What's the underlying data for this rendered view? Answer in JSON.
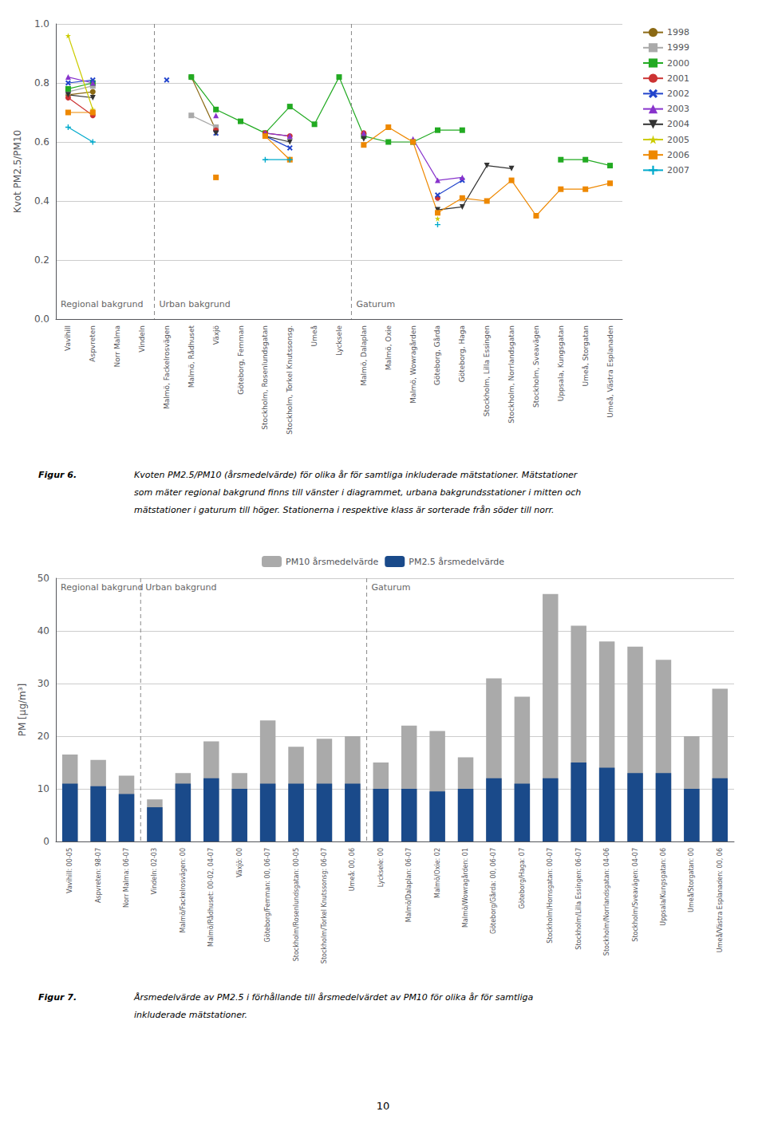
{
  "chart_data": [
    {
      "type": "line",
      "categories": [
        "Vavihill",
        "Aspvreten",
        "Norr Malma",
        "Vindeln",
        "Malmö, Fackelrosvägen",
        "Malmö, Rådhuset",
        "Växjö",
        "Göteborg, Femman",
        "Stockholm, Rosenlundsgatan",
        "Stockholm, Torkel Knutssonsg.",
        "Umeå",
        "Lycksele",
        "Malmö, Dalaplan",
        "Malmö, Oxie",
        "Malmö, Wowragården",
        "Göteborg, Gårda",
        "Göteborg, Haga",
        "Stockholm, Lilla Essingen",
        "Stockholm, Norrlandsgatan",
        "Stockholm, Sveavägen",
        "Uppsala, Kungsgatan",
        "Umeå, Storgatan",
        "Umeå, Västra Esplanaden"
      ],
      "series": [
        {
          "name": "1998",
          "color": "#8B6914",
          "marker": "circle",
          "values": [
            0.76,
            0.77,
            null,
            null,
            null,
            0.82,
            0.64,
            null,
            null,
            null,
            null,
            null,
            null,
            null,
            null,
            null,
            null,
            null,
            null,
            null,
            null,
            null,
            null
          ]
        },
        {
          "name": "1999",
          "color": "#aaaaaa",
          "marker": "square",
          "values": [
            0.77,
            0.79,
            null,
            null,
            null,
            0.69,
            0.65,
            null,
            null,
            null,
            null,
            null,
            null,
            null,
            null,
            null,
            null,
            null,
            null,
            null,
            null,
            null,
            null
          ]
        },
        {
          "name": "2000",
          "color": "#22aa22",
          "marker": "square",
          "values": [
            0.78,
            0.8,
            null,
            null,
            null,
            0.82,
            0.71,
            0.67,
            0.63,
            0.72,
            0.66,
            0.82,
            0.62,
            0.6,
            0.6,
            0.64,
            0.64,
            null,
            null,
            null,
            0.54,
            0.54,
            0.52
          ]
        },
        {
          "name": "2001",
          "color": "#cc3333",
          "marker": "circle",
          "values": [
            0.75,
            0.69,
            null,
            null,
            null,
            null,
            0.64,
            null,
            0.63,
            0.62,
            null,
            null,
            0.63,
            null,
            null,
            0.41,
            null,
            null,
            null,
            null,
            null,
            null,
            null
          ]
        },
        {
          "name": "2002",
          "color": "#2244cc",
          "marker": "x",
          "values": [
            0.8,
            0.81,
            null,
            null,
            0.81,
            null,
            0.63,
            null,
            0.62,
            0.58,
            null,
            null,
            null,
            null,
            null,
            0.42,
            0.47,
            null,
            null,
            null,
            null,
            null,
            null
          ]
        },
        {
          "name": "2003",
          "color": "#8833cc",
          "marker": "triangle-up",
          "values": [
            0.82,
            0.8,
            null,
            null,
            null,
            null,
            0.69,
            null,
            0.63,
            0.62,
            null,
            null,
            0.63,
            null,
            0.61,
            0.47,
            0.48,
            null,
            null,
            null,
            null,
            null,
            null
          ]
        },
        {
          "name": "2004",
          "color": "#333333",
          "marker": "triangle-down",
          "values": [
            0.76,
            0.75,
            null,
            null,
            null,
            null,
            0.63,
            null,
            0.62,
            0.6,
            null,
            null,
            0.61,
            null,
            null,
            0.37,
            0.38,
            0.52,
            0.51,
            null,
            null,
            null,
            null
          ]
        },
        {
          "name": "2005",
          "color": "#cccc00",
          "marker": "star",
          "values": [
            0.96,
            0.71,
            null,
            null,
            null,
            null,
            null,
            null,
            null,
            null,
            null,
            null,
            null,
            null,
            null,
            0.34,
            null,
            null,
            null,
            null,
            null,
            null,
            null
          ]
        },
        {
          "name": "2006",
          "color": "#ee8800",
          "marker": "square",
          "values": [
            0.7,
            0.7,
            null,
            null,
            null,
            null,
            0.48,
            null,
            0.62,
            0.54,
            null,
            null,
            0.59,
            0.65,
            0.6,
            0.36,
            0.41,
            0.4,
            0.47,
            0.35,
            0.44,
            0.44,
            0.46
          ]
        },
        {
          "name": "2007",
          "color": "#00aacc",
          "marker": "plus",
          "values": [
            0.65,
            0.6,
            null,
            null,
            null,
            null,
            null,
            null,
            0.54,
            0.54,
            null,
            null,
            null,
            null,
            null,
            0.32,
            null,
            null,
            null,
            null,
            null,
            null,
            null
          ]
        }
      ],
      "ylabel": "Kvot PM2.5/PM10",
      "ylim": [
        0,
        1.0
      ],
      "yticks": [
        {
          "value": 0,
          "label": "0.0"
        },
        0.2,
        0.4,
        0.6,
        0.8,
        {
          "value": 1,
          "label": "1.0"
        }
      ],
      "grid": true,
      "legend": "right",
      "sections": [
        {
          "label": "Regional bakgrund",
          "start": "Vavihill"
        },
        {
          "label": "Urban bakgrund",
          "start": "Malmö, Fackelrosvägen"
        },
        {
          "label": "Gaturum",
          "start": "Malmö, Dalaplan"
        }
      ],
      "caption_bold": "Figur 6.",
      "caption": [
        "Kvoten PM2.5/PM10 (årsmedelvärde) för olika år för samtliga inkluderade mätstationer. Mätstationer",
        "som mäter regional bakgrund finns till vänster i diagrammet, urbana bakgrundsstationer i mitten och",
        "mätstationer i gaturum till höger. Stationerna i respektive klass är sorterade från söder till norr."
      ]
    },
    {
      "type": "bar",
      "categories": [
        "Vavihill: 00-05",
        "Aspvreten: 98-07",
        "Norr Malma: 06-07",
        "Vindeln: 02-03",
        "Malmö/Fackelrosvägen: 00",
        "Malmö/Rådhuset: 00-02, 04-07",
        "Växjö: 00",
        "Göteborg/Femman: 00, 06-07",
        "Stockholm/Rosenlundsgatan: 00-05",
        "Stockholm/Torkel Knutssonsg: 06-07",
        "Umeå: 00, 06",
        "Lycksele: 00",
        "Malmö/Dalaplan: 06-07",
        "Malmö/Oxie: 02",
        "Malmö/Wowragården: 01",
        "Göteborg/Gårda: 00, 06-07",
        "Göteborg/Haga: 07",
        "Stockholm/Hornsgatan: 00-07",
        "Stockholm/Lilla Essingen: 06-07",
        "Stockholm/Norrlandsgatan: 04-06",
        "Stockholm/Sveavägen: 04-07",
        "Uppsala/Kungsgatan: 06",
        "Umeå/Storgatan: 00",
        "Umeå/Västra Esplanaden: 00, 06"
      ],
      "series": [
        {
          "name": "PM10 årsmedelvärde",
          "color": "#aaaaaa",
          "values": [
            16.5,
            15.5,
            12.5,
            8.0,
            13.0,
            19.0,
            13.0,
            23.0,
            18.0,
            19.5,
            20.0,
            15.0,
            22.0,
            21.0,
            16.0,
            31.0,
            27.5,
            47.0,
            41.0,
            38.0,
            37.0,
            34.5,
            20.0,
            29.0
          ]
        },
        {
          "name": "PM2.5 årsmedelvärde",
          "color": "#1a4a8a",
          "values": [
            11.0,
            10.5,
            9.0,
            6.5,
            11.0,
            12.0,
            10.0,
            11.0,
            11.0,
            11.0,
            11.0,
            10.0,
            10.0,
            9.5,
            10.0,
            12.0,
            11.0,
            12.0,
            15.0,
            14.0,
            13.0,
            13.0,
            10.0,
            12.0
          ]
        }
      ],
      "ylabel": "PM [µg/m³]",
      "ylim": [
        0,
        50
      ],
      "yticks": [
        0,
        10,
        20,
        30,
        40,
        50
      ],
      "grid": true,
      "legend": "top",
      "sections": [
        {
          "label": "Regional bakgrund",
          "start": "Vavihill: 00-05"
        },
        {
          "label": "Urban bakgrund",
          "start": "Vindeln: 02-03"
        },
        {
          "label": "Gaturum",
          "start": "Lycksele: 00"
        }
      ],
      "caption_bold": "Figur 7.",
      "caption": [
        "Årsmedelvärde av PM2.5 i förhållande till årsmedelvärdet av PM10 för olika år för samtliga",
        "inkluderade mätstationer."
      ]
    }
  ],
  "page_number": "10"
}
